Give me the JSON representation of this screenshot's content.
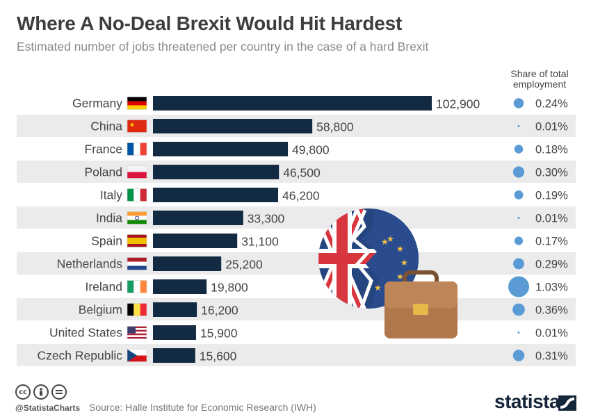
{
  "title": "Where A No-Deal Brexit Would Hit Hardest",
  "subtitle": "Estimated number of jobs threatened per country in the case of a hard Brexit",
  "share_header": "Share of total employment",
  "footer": {
    "handle": "@StatistaCharts",
    "source": "Source: Halle Institute for Economic Research (IWH)",
    "brand": "statista",
    "license_icons": [
      "cc-icon",
      "by-icon",
      "nd-icon"
    ]
  },
  "colors": {
    "bar": "#132a43",
    "bubble": "#5b9bd5",
    "row_band": "#ebebeb"
  },
  "chart_data": {
    "type": "bar",
    "orientation": "horizontal",
    "title": "Where A No-Deal Brexit Would Hit Hardest",
    "subtitle": "Estimated number of jobs threatened per country in the case of a hard Brexit",
    "categories": [
      "Germany",
      "China",
      "France",
      "Poland",
      "Italy",
      "India",
      "Spain",
      "Netherlands",
      "Ireland",
      "Belgium",
      "United States",
      "Czech Republic"
    ],
    "values": [
      102900,
      58800,
      49800,
      46500,
      46200,
      33300,
      31100,
      25200,
      19800,
      16200,
      15900,
      15600
    ],
    "value_labels": [
      "102,900",
      "58,800",
      "49,800",
      "46,500",
      "46,200",
      "33,300",
      "31,100",
      "25,200",
      "19,800",
      "16,200",
      "15,900",
      "15,600"
    ],
    "share_of_total_employment": [
      0.24,
      0.01,
      0.18,
      0.3,
      0.19,
      0.01,
      0.17,
      0.29,
      1.03,
      0.36,
      0.01,
      0.31
    ],
    "share_labels": [
      "0.24%",
      "0.01%",
      "0.18%",
      "0.30%",
      "0.19%",
      "0.01%",
      "0.17%",
      "0.29%",
      "1.03%",
      "0.36%",
      "0.01%",
      "0.31%"
    ],
    "flags": [
      "germany-flag-icon",
      "china-flag-icon",
      "france-flag-icon",
      "poland-flag-icon",
      "italy-flag-icon",
      "india-flag-icon",
      "spain-flag-icon",
      "netherlands-flag-icon",
      "ireland-flag-icon",
      "belgium-flag-icon",
      "united-states-flag-icon",
      "czech-republic-flag-icon"
    ],
    "xlim": [
      0,
      102900
    ],
    "grid": false,
    "legend": "none"
  }
}
